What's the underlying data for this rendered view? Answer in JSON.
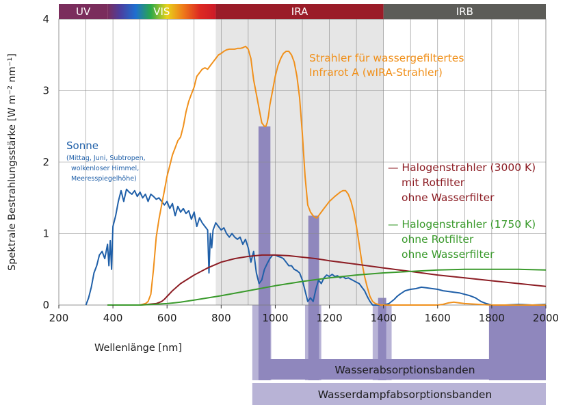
{
  "chart_data": {
    "type": "line",
    "ylabel": "Spektrale Bestrahlungsstärke [W m⁻² nm⁻¹]",
    "xlabel": "Wellenlänge [nm]",
    "xlim": [
      200,
      2000
    ],
    "ylim": [
      0,
      4
    ],
    "x_ticks": [
      "200",
      "400",
      "600",
      "800",
      "1000",
      "1200",
      "1400",
      "1600",
      "1800",
      "2000"
    ],
    "y_ticks": [
      "0",
      "1",
      "2",
      "3",
      "4"
    ],
    "grid": true,
    "bands": [
      {
        "label": "UV",
        "from": 200,
        "to": 380,
        "color": "#7a2d5c"
      },
      {
        "label": "VIS",
        "from": 380,
        "to": 780,
        "color": "#cc1a28"
      },
      {
        "label": "IRA",
        "from": 780,
        "to": 1400,
        "color": "#9a1c28"
      },
      {
        "label": "IRB",
        "from": 1400,
        "to": 2000,
        "color": "#5c5c58"
      }
    ],
    "highlight_region": {
      "from": 780,
      "to": 1400,
      "color": "#e6e6e6"
    },
    "absorption_bands": [
      {
        "from": 938,
        "to": 982
      },
      {
        "from": 1122,
        "to": 1162
      },
      {
        "from": 1380,
        "to": 1410
      },
      {
        "from": 1790,
        "to": 2000
      }
    ],
    "vapor_bands": [
      {
        "from": 915,
        "to": 985
      },
      {
        "from": 1110,
        "to": 1170
      },
      {
        "from": 1360,
        "to": 1430
      },
      {
        "from": 1790,
        "to": 2000
      }
    ],
    "absorption_label": "Wasserabsorptionsbanden",
    "vapor_label": "Wasserdampfabsorptionsbanden",
    "series": [
      {
        "name": "Sonne",
        "color": "#1f5fa8",
        "x": [
          300,
          310,
          320,
          330,
          340,
          350,
          360,
          370,
          380,
          385,
          390,
          395,
          400,
          410,
          420,
          430,
          440,
          450,
          460,
          470,
          480,
          490,
          500,
          510,
          520,
          530,
          540,
          550,
          560,
          570,
          580,
          590,
          600,
          610,
          620,
          630,
          640,
          650,
          660,
          670,
          680,
          690,
          700,
          710,
          720,
          730,
          740,
          750,
          755,
          760,
          765,
          770,
          780,
          790,
          800,
          810,
          820,
          830,
          840,
          850,
          860,
          870,
          880,
          890,
          900,
          910,
          920,
          930,
          940,
          950,
          960,
          970,
          980,
          990,
          1000,
          1010,
          1020,
          1030,
          1040,
          1050,
          1060,
          1070,
          1080,
          1090,
          1100,
          1110,
          1120,
          1130,
          1140,
          1150,
          1160,
          1170,
          1180,
          1190,
          1200,
          1210,
          1220,
          1230,
          1240,
          1250,
          1260,
          1270,
          1280,
          1290,
          1300,
          1310,
          1320,
          1330,
          1340,
          1350,
          1360,
          1380,
          1400,
          1420,
          1440,
          1450,
          1460,
          1480,
          1500,
          1520,
          1540,
          1560,
          1580,
          1600,
          1620,
          1640,
          1660,
          1680,
          1700,
          1720,
          1740,
          1760,
          1780,
          1800,
          1850,
          1900,
          1950,
          2000
        ],
        "values": [
          0.0,
          0.1,
          0.25,
          0.45,
          0.55,
          0.7,
          0.75,
          0.65,
          0.85,
          0.55,
          0.9,
          0.5,
          1.1,
          1.25,
          1.45,
          1.6,
          1.45,
          1.62,
          1.58,
          1.55,
          1.6,
          1.52,
          1.58,
          1.5,
          1.55,
          1.45,
          1.55,
          1.52,
          1.48,
          1.5,
          1.45,
          1.4,
          1.45,
          1.35,
          1.42,
          1.25,
          1.38,
          1.3,
          1.35,
          1.28,
          1.32,
          1.2,
          1.3,
          1.1,
          1.22,
          1.15,
          1.1,
          1.05,
          0.45,
          1.0,
          0.8,
          1.05,
          1.15,
          1.1,
          1.05,
          1.08,
          1.0,
          0.95,
          1.0,
          0.95,
          0.92,
          0.95,
          0.85,
          0.92,
          0.8,
          0.6,
          0.75,
          0.45,
          0.3,
          0.35,
          0.5,
          0.58,
          0.65,
          0.7,
          0.7,
          0.68,
          0.67,
          0.65,
          0.6,
          0.55,
          0.55,
          0.5,
          0.48,
          0.45,
          0.35,
          0.2,
          0.05,
          0.1,
          0.05,
          0.22,
          0.35,
          0.3,
          0.38,
          0.42,
          0.4,
          0.43,
          0.4,
          0.41,
          0.38,
          0.4,
          0.37,
          0.38,
          0.36,
          0.34,
          0.32,
          0.3,
          0.25,
          0.2,
          0.12,
          0.05,
          0.0,
          0.0,
          0.0,
          0.02,
          0.08,
          0.12,
          0.15,
          0.2,
          0.22,
          0.23,
          0.25,
          0.24,
          0.23,
          0.22,
          0.2,
          0.19,
          0.18,
          0.17,
          0.15,
          0.13,
          0.1,
          0.05,
          0.02,
          0.0,
          0.0,
          0.01,
          0.0,
          0.01
        ]
      },
      {
        "name": "Strahler für wassergefiltertes Infrarot A (wIRA-Strahler)",
        "color": "#f0901b",
        "x": [
          500,
          520,
          530,
          540,
          550,
          560,
          570,
          580,
          590,
          600,
          610,
          620,
          630,
          640,
          650,
          660,
          670,
          680,
          690,
          700,
          710,
          720,
          730,
          740,
          750,
          760,
          770,
          780,
          790,
          800,
          810,
          820,
          830,
          840,
          850,
          860,
          870,
          880,
          890,
          900,
          910,
          915,
          920,
          930,
          940,
          950,
          960,
          965,
          970,
          975,
          980,
          990,
          1000,
          1010,
          1020,
          1030,
          1040,
          1050,
          1060,
          1070,
          1080,
          1090,
          1100,
          1110,
          1120,
          1130,
          1140,
          1150,
          1155,
          1160,
          1170,
          1180,
          1190,
          1200,
          1220,
          1240,
          1250,
          1260,
          1270,
          1280,
          1290,
          1300,
          1310,
          1320,
          1330,
          1340,
          1350,
          1360,
          1370,
          1380,
          1390,
          1400,
          1450,
          1500,
          1550,
          1600,
          1620,
          1640,
          1660,
          1680,
          1700,
          1750,
          1800,
          1900,
          2000
        ],
        "values": [
          0.0,
          0.02,
          0.05,
          0.15,
          0.5,
          0.95,
          1.2,
          1.4,
          1.6,
          1.8,
          1.95,
          2.1,
          2.2,
          2.3,
          2.35,
          2.5,
          2.7,
          2.85,
          2.95,
          3.05,
          3.2,
          3.25,
          3.3,
          3.32,
          3.3,
          3.35,
          3.4,
          3.45,
          3.5,
          3.52,
          3.55,
          3.57,
          3.58,
          3.58,
          3.58,
          3.59,
          3.59,
          3.6,
          3.62,
          3.58,
          3.45,
          3.3,
          3.15,
          2.95,
          2.75,
          2.55,
          2.5,
          2.5,
          2.55,
          2.65,
          2.8,
          3.0,
          3.2,
          3.35,
          3.45,
          3.52,
          3.55,
          3.55,
          3.5,
          3.4,
          3.2,
          2.9,
          2.4,
          1.8,
          1.4,
          1.3,
          1.25,
          1.22,
          1.22,
          1.25,
          1.3,
          1.35,
          1.4,
          1.45,
          1.52,
          1.58,
          1.6,
          1.6,
          1.55,
          1.45,
          1.3,
          1.1,
          0.85,
          0.6,
          0.4,
          0.25,
          0.12,
          0.05,
          0.02,
          0.01,
          0.0,
          0.0,
          0.0,
          0.0,
          0.0,
          0.0,
          0.01,
          0.03,
          0.04,
          0.03,
          0.02,
          0.01,
          0.0,
          0.0,
          0.0
        ]
      },
      {
        "name": "Halogenstrahler (3000 K) mit Rotfilter ohne Wasserfilter",
        "color": "#8c1d24",
        "x": [
          380,
          500,
          560,
          580,
          590,
          600,
          620,
          650,
          700,
          750,
          800,
          850,
          900,
          950,
          1000,
          1050,
          1100,
          1150,
          1200,
          1300,
          1400,
          1500,
          1600,
          1700,
          1800,
          1900,
          2000
        ],
        "values": [
          0.0,
          0.0,
          0.02,
          0.05,
          0.08,
          0.12,
          0.2,
          0.3,
          0.42,
          0.52,
          0.6,
          0.65,
          0.68,
          0.7,
          0.7,
          0.69,
          0.67,
          0.65,
          0.62,
          0.57,
          0.52,
          0.47,
          0.42,
          0.38,
          0.34,
          0.3,
          0.26
        ]
      },
      {
        "name": "Halogenstrahler (1750 K) ohne Rotfilter ohne Wasserfilter",
        "color": "#3a9a2c",
        "x": [
          380,
          500,
          550,
          600,
          650,
          700,
          800,
          900,
          1000,
          1100,
          1200,
          1300,
          1400,
          1500,
          1600,
          1700,
          1800,
          1900,
          2000
        ],
        "values": [
          0.0,
          0.0,
          0.01,
          0.02,
          0.04,
          0.07,
          0.13,
          0.2,
          0.27,
          0.33,
          0.38,
          0.42,
          0.45,
          0.47,
          0.49,
          0.5,
          0.5,
          0.5,
          0.49
        ]
      }
    ],
    "annotations": {
      "sun_title": "Sonne",
      "sun_lines": [
        "(Mittag, Juni, Subtropen,",
        "wolkenloser Himmel,",
        "Meeresspiegelhöhe)"
      ],
      "wira_lines": [
        "Strahler für wassergefiltertes",
        "Infrarot A (wIRA-Strahler)"
      ],
      "red_lines": [
        "— Halogenstrahler (3000 K)",
        "mit Rotfilter",
        "ohne Wasserfilter"
      ],
      "green_lines": [
        "— Halogenstrahler (1750 K)",
        "ohne Rotfilter",
        "ohne Wasserfilter"
      ]
    }
  }
}
